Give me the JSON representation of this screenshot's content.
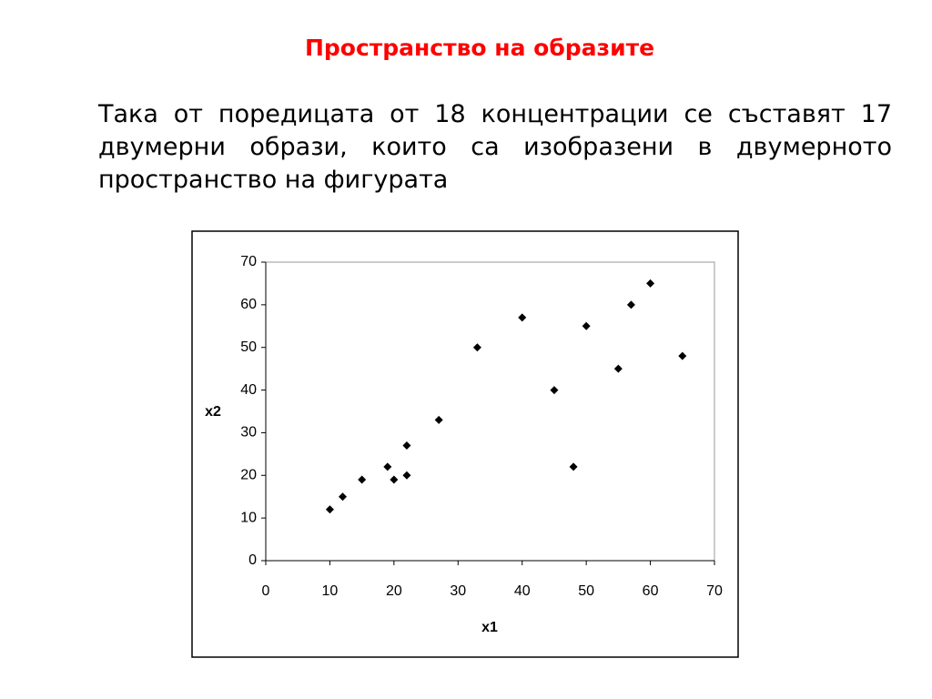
{
  "title": "Пространство на образите",
  "text": "Така от поредицата от 18 концентрации се съставят 17 двумерни образи, които са изобразени в двумерното пространство  на фигурата",
  "chart_data": {
    "type": "scatter",
    "x_label": "x1",
    "y_label": "x2",
    "color": "#000000",
    "x": [
      10,
      12,
      15,
      19,
      20,
      22,
      22,
      27,
      33,
      40,
      45,
      48,
      50,
      55,
      57,
      60,
      65
    ],
    "values": [
      12,
      15,
      19,
      22,
      19,
      27,
      20,
      33,
      50,
      57,
      40,
      22,
      55,
      45,
      60,
      65,
      48
    ],
    "xlim": [
      0,
      70
    ],
    "ylim": [
      0,
      70
    ],
    "xticks": [
      0,
      10,
      20,
      30,
      40,
      50,
      60,
      70
    ],
    "yticks": [
      0,
      10,
      20,
      30,
      40,
      50,
      60,
      70
    ]
  }
}
